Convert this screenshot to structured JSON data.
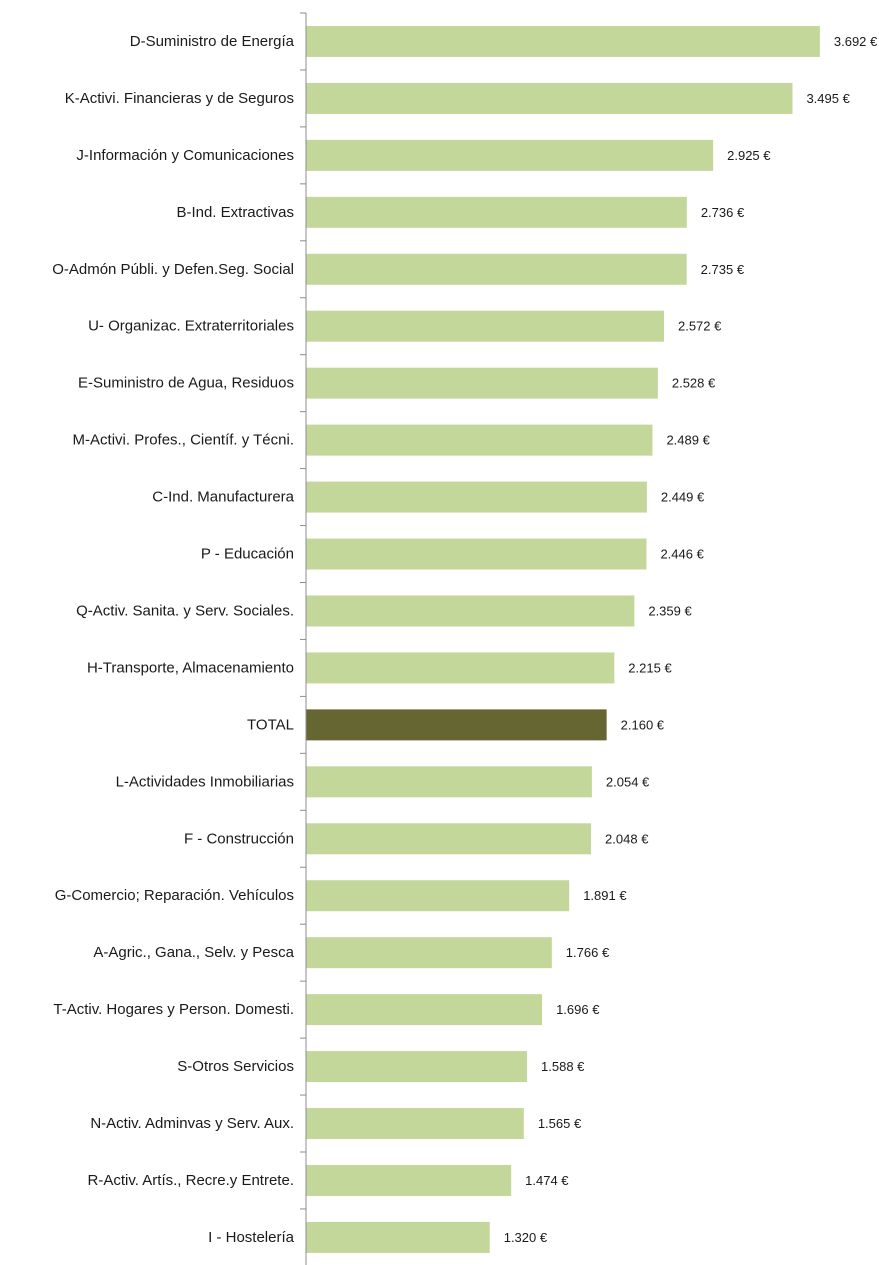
{
  "chart_data": {
    "type": "bar",
    "orientation": "horizontal",
    "title": "",
    "xlabel": "",
    "ylabel": "",
    "xlim": [
      0,
      3700
    ],
    "grid": false,
    "legend": "none",
    "unit_suffix": " €",
    "colors": {
      "bar": "#c4d79b",
      "highlight": "#666633"
    },
    "categories": [
      "D-Suministro de Energía",
      "K-Activi. Financieras y de Seguros",
      "J-Información y Comunicaciones",
      "B-Ind. Extractivas",
      "O-Admón Públi. y Defen.Seg. Social",
      "U- Organizac. Extraterritoriales",
      "E-Suministro de Agua, Residuos",
      "M-Activi. Profes., Científ. y Técni.",
      "C-Ind. Manufacturera",
      "P - Educación",
      "Q-Activ. Sanita. y Serv. Sociales.",
      "H-Transporte, Almacenamiento",
      "TOTAL",
      "L-Actividades Inmobiliarias",
      "F - Construcción",
      "G-Comercio; Reparación. Vehículos",
      "A-Agric., Gana., Selv. y Pesca",
      "T-Activ. Hogares y Person. Domesti.",
      "S-Otros Servicios",
      "N-Activ. Adminvas y Serv. Aux.",
      "R-Activ. Artís., Recre.y Entrete.",
      "I - Hostelería"
    ],
    "values": [
      3692,
      3495,
      2925,
      2736,
      2735,
      2572,
      2528,
      2489,
      2449,
      2446,
      2359,
      2215,
      2160,
      2054,
      2048,
      1891,
      1766,
      1696,
      1588,
      1565,
      1474,
      1320
    ],
    "value_labels": [
      "3.692 €",
      "3.495 €",
      "2.925 €",
      "2.736 €",
      "2.735 €",
      "2.572 €",
      "2.528 €",
      "2.489 €",
      "2.449 €",
      "2.446 €",
      "2.359 €",
      "2.215 €",
      "2.160 €",
      "2.054 €",
      "2.048 €",
      "1.891 €",
      "1.766 €",
      "1.696 €",
      "1.588 €",
      "1.565 €",
      "1.474 €",
      "1.320 €"
    ],
    "highlight_category": "TOTAL"
  }
}
